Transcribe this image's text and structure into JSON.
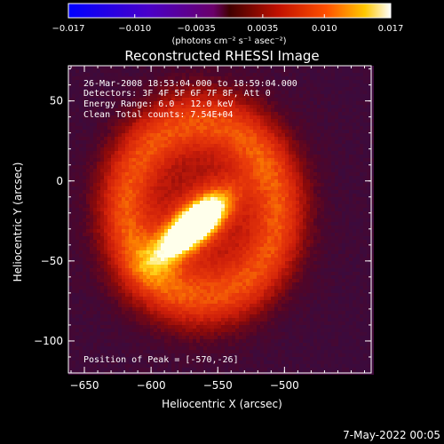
{
  "chart_data": {
    "type": "heatmap",
    "title": "Reconstructed RHESSI Image",
    "xlabel": "Heliocentric X (arcsec)",
    "ylabel": "Heliocentric Y (arcsec)",
    "xlim": [
      -662,
      -435
    ],
    "ylim": [
      -120,
      72
    ],
    "x_ticks": [
      -650,
      -600,
      -550,
      -500
    ],
    "y_ticks": [
      -100,
      -50,
      0,
      50
    ],
    "x_tick_labels": [
      "−650",
      "−600",
      "−550",
      "−500"
    ],
    "y_tick_labels": [
      "−100",
      "−50",
      "0",
      "50"
    ],
    "colorbar": {
      "range": [
        -0.017,
        0.017
      ],
      "ticks": [
        -0.017,
        -0.01,
        -0.0035,
        0.0035,
        0.01,
        0.017
      ],
      "tick_labels": [
        "−0.017",
        "−0.010",
        "−0.0035",
        "0.0035",
        "0.010",
        "0.017"
      ],
      "unit_label": "(photons cm⁻² s⁻¹ asec⁻²)"
    },
    "annotations": [
      "26-Mar-2008 18:53:04.000 to 18:59:04.000",
      "Detectors: 3F 4F 5F 6F 7F 8F, Att 0",
      "Energy Range: 6.0 - 12.0 keV",
      "Clean     Total counts: 7.54E+04"
    ],
    "peak_label": "Position of Peak = [-570,-26]",
    "source": {
      "core_center": [
        -568,
        -28
      ],
      "ring_center": [
        -562,
        -18
      ],
      "ring_radius": 58
    }
  },
  "footer_date": "7-May-2022 00:05"
}
